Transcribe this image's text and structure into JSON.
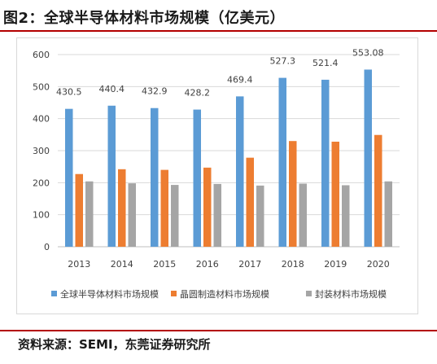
{
  "header": {
    "title": "图2：全球半导体材料市场规模（亿美元）"
  },
  "footer": {
    "source": "资料来源：SEMI，东莞证券研究所"
  },
  "colors": {
    "series1": "#5b9bd5",
    "series2": "#ed7d31",
    "series3": "#a5a5a5",
    "rule": "#b30000"
  },
  "chart_data": {
    "type": "bar",
    "title": "",
    "xlabel": "",
    "ylabel": "",
    "ylim": [
      0,
      600
    ],
    "yticks": [
      "0",
      "100",
      "200",
      "300",
      "400",
      "500",
      "600"
    ],
    "categories": [
      "2013",
      "2014",
      "2015",
      "2016",
      "2017",
      "2018",
      "2019",
      "2020"
    ],
    "grid": true,
    "legend_position": "bottom",
    "series": [
      {
        "name": "全球半导体材料市场规模",
        "values": [
          430.5,
          440.4,
          432.9,
          428.2,
          469.4,
          527.3,
          521.4,
          553.08
        ],
        "labels": [
          "430.5",
          "440.4",
          "432.9",
          "428.2",
          "469.4",
          "527.3",
          "521.4",
          "553.08"
        ]
      },
      {
        "name": "晶圆制造材料市场规模",
        "values": [
          227,
          242,
          240,
          247,
          278,
          330,
          328,
          349
        ]
      },
      {
        "name": "封装材料市场规模",
        "values": [
          204,
          198,
          193,
          196,
          191,
          197,
          192,
          204
        ]
      }
    ]
  }
}
